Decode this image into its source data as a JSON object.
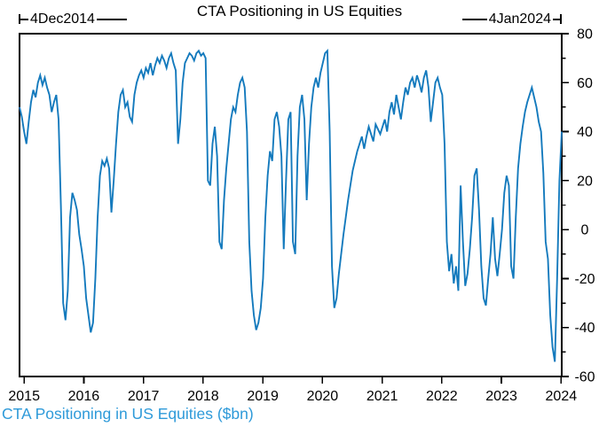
{
  "header": {
    "title": "CTA Positioning in US Equities",
    "start_label": "4Dec2014",
    "end_label": "4Jan2024"
  },
  "footer": {
    "caption": "CTA Positioning in US Equities ($bn)"
  },
  "colors": {
    "line": "#147ABD",
    "caption": "#2E9AD9",
    "axis": "#000000",
    "text": "#000000"
  },
  "chart_data": {
    "type": "line",
    "title": "CTA Positioning in US Equities",
    "series_name": "CTA Positioning in US Equities ($bn)",
    "xlabel": "",
    "ylabel": "",
    "grid": false,
    "legend_position": "none",
    "x_start_label": "4Dec2014",
    "x_end_label": "4Jan2024",
    "x_start": 2014.923,
    "x_end": 2024.01,
    "xticks": [
      2015,
      2016,
      2017,
      2018,
      2019,
      2020,
      2021,
      2022,
      2023,
      2024
    ],
    "yticks": [
      80,
      60,
      40,
      20,
      0,
      -20,
      -40,
      -60
    ],
    "y_minor_ticks": [
      70,
      50,
      30,
      10,
      -10,
      -30,
      -50
    ],
    "ylim": [
      -60,
      80
    ],
    "values": [
      50,
      46,
      40,
      35,
      44,
      52,
      57,
      54,
      60,
      63,
      59,
      62,
      58,
      55,
      48,
      52,
      55,
      45,
      10,
      -30,
      -37,
      -25,
      5,
      15,
      12,
      8,
      -2,
      -8,
      -15,
      -28,
      -35,
      -42,
      -38,
      -20,
      5,
      22,
      28,
      26,
      29,
      25,
      7,
      20,
      35,
      48,
      55,
      57,
      50,
      52,
      46,
      44,
      55,
      60,
      63,
      65,
      62,
      66,
      64,
      68,
      63,
      67,
      70,
      68,
      71,
      69,
      66,
      70,
      72,
      68,
      65,
      35,
      45,
      60,
      68,
      70,
      72,
      71,
      69,
      72,
      73,
      71,
      72,
      70,
      20,
      18,
      35,
      42,
      30,
      -5,
      -8,
      12,
      25,
      35,
      45,
      50,
      48,
      55,
      60,
      62,
      58,
      40,
      -5,
      -25,
      -35,
      -41,
      -38,
      -32,
      -20,
      5,
      22,
      32,
      28,
      45,
      48,
      42,
      30,
      -8,
      20,
      45,
      48,
      -5,
      -10,
      30,
      50,
      55,
      45,
      12,
      35,
      50,
      58,
      62,
      58,
      64,
      68,
      72,
      73,
      40,
      -15,
      -32,
      -28,
      -18,
      -10,
      -2,
      5,
      12,
      18,
      24,
      28,
      32,
      35,
      38,
      33,
      38,
      42,
      39,
      36,
      43,
      41,
      39,
      42,
      45,
      40,
      48,
      52,
      47,
      55,
      50,
      45,
      52,
      58,
      55,
      60,
      62,
      58,
      63,
      60,
      56,
      62,
      65,
      58,
      44,
      52,
      60,
      62,
      58,
      55,
      35,
      -5,
      -17,
      -10,
      -22,
      -15,
      -25,
      18,
      -5,
      -23,
      -18,
      -8,
      5,
      22,
      25,
      8,
      -15,
      -28,
      -31,
      -20,
      -10,
      5,
      -12,
      -19,
      -10,
      0,
      15,
      22,
      18,
      -15,
      -20,
      5,
      25,
      35,
      42,
      48,
      52,
      55,
      58,
      54,
      50,
      44,
      40,
      23,
      -5,
      -12,
      -35,
      -48,
      -54,
      -20,
      20,
      40
    ]
  }
}
